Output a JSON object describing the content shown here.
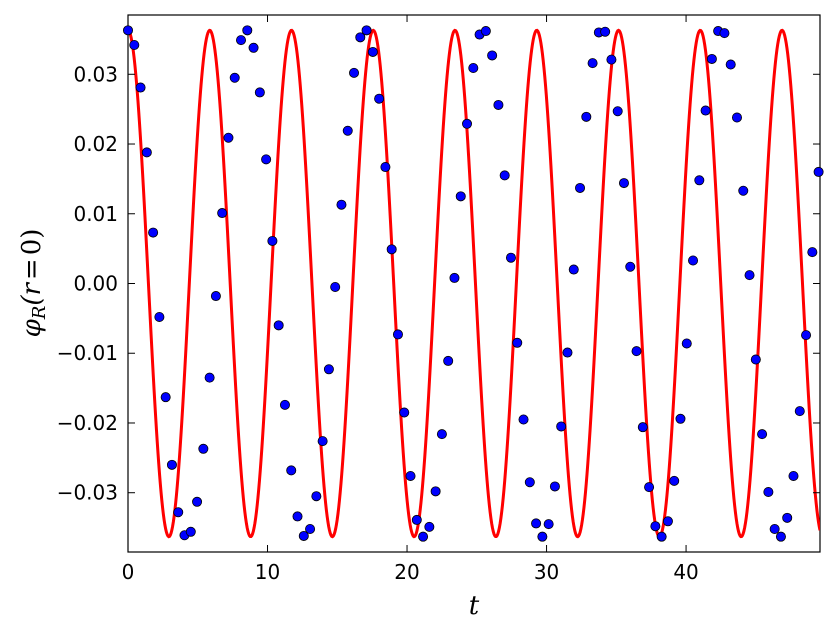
{
  "chart_data": {
    "type": "line",
    "title": "",
    "xlabel": "t",
    "ylabel": "φ_R(r=0)",
    "ylabel_parts": {
      "phi": "φ",
      "sub": "R",
      "args": "(r",
      "eq": "=",
      "zero": "0)"
    },
    "xlim": [
      0,
      49.6
    ],
    "ylim": [
      -0.0385,
      0.0385
    ],
    "x_ticks": [
      0,
      10,
      20,
      30,
      40
    ],
    "x_tick_labels": [
      "0",
      "10",
      "20",
      "30",
      "40"
    ],
    "y_ticks": [
      0.03,
      0.02,
      0.01,
      0.0,
      -0.01,
      -0.02,
      -0.03
    ],
    "y_tick_labels": [
      "0.03",
      "0.02",
      "0.01",
      "0.00",
      "−0.01",
      "−0.02",
      "−0.03"
    ],
    "grid": false,
    "legend": "none",
    "series": [
      {
        "kind": "line",
        "color": "#ff0000",
        "formula": "0.0363*cos(2*pi*t/5.86)",
        "amplitude": 0.0363,
        "period": 5.86,
        "t_range": [
          0,
          49.6
        ]
      },
      {
        "kind": "scatter",
        "color": "#0000ff",
        "x": [
          0.0,
          0.45,
          0.9,
          1.35,
          1.8,
          2.25,
          2.7,
          3.15,
          3.6,
          4.05,
          4.5,
          4.95,
          5.4,
          5.85,
          6.3,
          6.75,
          7.2,
          7.65,
          8.1,
          8.55,
          9.0,
          9.45,
          9.9,
          10.35,
          10.8,
          11.25,
          11.7,
          12.15,
          12.6,
          13.05,
          13.5,
          13.95,
          14.4,
          14.85,
          15.3,
          15.75,
          16.2,
          16.65,
          17.1,
          17.55,
          18.0,
          18.45,
          18.9,
          19.35,
          19.8,
          20.25,
          20.7,
          21.15,
          21.6,
          22.05,
          22.5,
          22.95,
          23.4,
          23.85,
          24.3,
          24.75,
          25.2,
          25.65,
          26.1,
          26.55,
          27.0,
          27.45,
          27.9,
          28.35,
          28.8,
          29.25,
          29.7,
          30.15,
          30.6,
          31.05,
          31.5,
          31.95,
          32.4,
          32.85,
          33.3,
          33.75,
          34.2,
          34.65,
          35.1,
          35.55,
          36.0,
          36.45,
          36.9,
          37.35,
          37.8,
          38.25,
          38.7,
          39.15,
          39.6,
          40.05,
          40.5,
          40.95,
          41.4,
          41.85,
          42.3,
          42.75,
          43.2,
          43.65,
          44.1,
          44.55,
          45.0,
          45.45,
          45.9,
          46.35,
          46.8,
          47.25,
          47.7,
          48.15,
          48.6,
          49.05,
          49.5
        ],
        "y": [
          0.0363,
          0.0342,
          0.0281,
          0.0188,
          0.0073,
          -0.0048,
          -0.0163,
          -0.026,
          -0.0328,
          -0.0361,
          -0.0356,
          -0.0313,
          -0.0237,
          -0.0135,
          -0.0018,
          0.0101,
          0.0209,
          0.0295,
          0.0349,
          0.0363,
          0.0338,
          0.0274,
          0.0178,
          0.0061,
          -0.006,
          -0.0174,
          -0.0268,
          -0.0334,
          -0.0362,
          -0.0352,
          -0.0305,
          -0.0226,
          -0.0123,
          -0.0005,
          0.0113,
          0.0219,
          0.0302,
          0.0353,
          0.0363,
          0.0332,
          0.0265,
          0.0167,
          0.0049,
          -0.0073,
          -0.0185,
          -0.0276,
          -0.0339,
          -0.0363,
          -0.0349,
          -0.0298,
          -0.0216,
          -0.0111,
          0.0008,
          0.0125,
          0.0229,
          0.0309,
          0.0357,
          0.0362,
          0.0327,
          0.0256,
          0.0155,
          0.0037,
          -0.0085,
          -0.0195,
          -0.0285,
          -0.0344,
          -0.0363,
          -0.0345,
          -0.0291,
          -0.0205,
          -0.0099,
          0.002,
          0.0137,
          0.0239,
          0.0316,
          0.036,
          0.0361,
          0.0321,
          0.0247,
          0.0144,
          0.0024,
          -0.0097,
          -0.0206,
          -0.0292,
          -0.0348,
          -0.0363,
          -0.0341,
          -0.0283,
          -0.0194,
          -0.0086,
          0.0033,
          0.0148,
          0.0248,
          0.0322,
          0.0362,
          0.0359,
          0.0314,
          0.0238,
          0.0133,
          0.0012,
          -0.0109,
          -0.0216,
          -0.0299,
          -0.0352,
          -0.0363,
          -0.0336,
          -0.0276,
          -0.0183,
          -0.0074,
          0.0045,
          0.016
        ]
      }
    ]
  }
}
